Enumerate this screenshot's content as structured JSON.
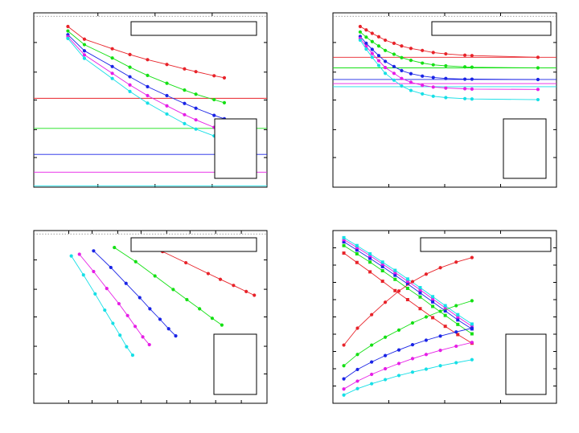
{
  "colors": {
    "red": "#e8232a",
    "green": "#14e014",
    "blue": "#1a24e6",
    "magenta": "#e61ee6",
    "cyan": "#16dfe6",
    "frame": "#000000",
    "reference": "#808080"
  },
  "chart_data": [
    {
      "type": "line",
      "title": "",
      "xlabel": "",
      "ylabel": "",
      "xlim": [
        0,
        41
      ],
      "ylim": [
        0,
        51
      ],
      "grid": false,
      "legend": "top-right",
      "legend_box": "bottom-right",
      "reference_line": 50,
      "series": [
        {
          "color": "red",
          "x": [
            6,
            8.9,
            13.8,
            16.9,
            20,
            23.4,
            26.5,
            28.5,
            31.7,
            33.5
          ],
          "y": [
            47,
            43.3,
            40.5,
            38.8,
            37.3,
            35.9,
            34.6,
            33.8,
            32.6,
            32.0
          ]
        },
        {
          "color": "green",
          "x": [
            6,
            8.9,
            13.8,
            16.9,
            20,
            23.4,
            26.5,
            28.5,
            31.7,
            33.5
          ],
          "y": [
            45.7,
            41.7,
            37.8,
            35.1,
            32.7,
            30.4,
            28.4,
            27.2,
            25.6,
            24.7
          ]
        },
        {
          "color": "blue",
          "x": [
            6,
            8.9,
            13.8,
            16.9,
            20,
            23.4,
            26.5,
            28.5,
            31.7,
            33.5
          ],
          "y": [
            44.6,
            39.9,
            35.3,
            32.3,
            29.4,
            26.8,
            24.5,
            23.1,
            21.0,
            20.0
          ]
        },
        {
          "color": "magenta",
          "x": [
            6,
            8.9,
            13.8,
            16.9,
            20,
            23.4,
            26.5,
            28.5,
            31.7,
            33.5
          ],
          "y": [
            44.0,
            38.7,
            33.3,
            29.9,
            26.8,
            23.8,
            21.2,
            19.7,
            17.5,
            16.5
          ]
        },
        {
          "color": "cyan",
          "x": [
            6,
            8.9,
            13.8,
            16.9,
            20,
            23.4,
            26.5,
            28.5,
            31.7,
            33.5
          ],
          "y": [
            43.5,
            37.7,
            31.8,
            28.0,
            24.6,
            21.4,
            18.6,
            17.0,
            15.0,
            14.0
          ]
        }
      ],
      "hlines": [
        {
          "color": "red",
          "y": 26.0
        },
        {
          "color": "green",
          "y": 17.2
        },
        {
          "color": "blue",
          "y": 9.6
        },
        {
          "color": "magenta",
          "y": 4.4
        },
        {
          "color": "cyan",
          "y": 0.4
        }
      ]
    },
    {
      "type": "line",
      "title": "",
      "xlabel": "",
      "ylabel": "",
      "xlim": [
        0,
        41
      ],
      "ylim": [
        0,
        51
      ],
      "grid": false,
      "legend": "top-right",
      "legend_box": "bottom-right",
      "reference_line": 50,
      "series": [
        {
          "color": "red",
          "x": [
            5,
            6.1,
            7.2,
            8.4,
            9.6,
            11.2,
            12.6,
            14.3,
            16.4,
            18.4,
            20.7,
            24.2,
            25.5,
            37.6
          ],
          "y": [
            47,
            46.0,
            45.0,
            44.0,
            43.0,
            42.1,
            41.3,
            40.6,
            40.0,
            39.4,
            39.0,
            38.6,
            38.5,
            38.0
          ]
        },
        {
          "color": "green",
          "x": [
            5,
            6.1,
            7.2,
            8.4,
            9.6,
            11.2,
            12.6,
            14.3,
            16.4,
            18.4,
            20.7,
            24.2,
            25.5,
            37.6
          ],
          "y": [
            45.4,
            43.9,
            42.6,
            41.3,
            40.0,
            38.9,
            37.9,
            37.1,
            36.3,
            35.8,
            35.5,
            35.2,
            35.1,
            34.9
          ]
        },
        {
          "color": "blue",
          "x": [
            5,
            6.1,
            7.2,
            8.4,
            9.6,
            11.2,
            12.6,
            14.3,
            16.4,
            18.4,
            20.7,
            24.2,
            25.5,
            37.6
          ],
          "y": [
            44.1,
            42.1,
            40.3,
            38.5,
            36.8,
            35.3,
            34.1,
            33.2,
            32.5,
            32.1,
            31.8,
            31.6,
            31.6,
            31.5
          ]
        },
        {
          "color": "magenta",
          "x": [
            5,
            6.1,
            7.2,
            8.4,
            9.6,
            11.2,
            12.6,
            14.3,
            16.4,
            18.4,
            20.7,
            24.2,
            25.5,
            37.6
          ],
          "y": [
            43.5,
            41.2,
            39.1,
            37.0,
            35.0,
            33.3,
            31.8,
            30.7,
            29.8,
            29.3,
            29.0,
            28.8,
            28.7,
            28.6
          ]
        },
        {
          "color": "cyan",
          "x": [
            5,
            6.1,
            7.2,
            8.4,
            9.6,
            11.2,
            12.6,
            14.3,
            16.4,
            18.4,
            20.7,
            24.2,
            25.5,
            37.6
          ],
          "y": [
            43.0,
            40.4,
            38.0,
            35.6,
            33.3,
            31.3,
            29.6,
            28.3,
            27.3,
            26.6,
            26.2,
            25.9,
            25.8,
            25.6
          ]
        }
      ],
      "hlines": [
        {
          "color": "red",
          "y": 38.0
        },
        {
          "color": "green",
          "y": 34.9
        },
        {
          "color": "blue",
          "y": 31.5
        },
        {
          "color": "magenta",
          "y": 30.3
        },
        {
          "color": "cyan",
          "y": 29.4
        }
      ]
    },
    {
      "type": "line",
      "title": "",
      "xlabel": "",
      "ylabel": "",
      "xlim": [
        0,
        46
      ],
      "ylim": [
        0,
        51
      ],
      "grid": false,
      "legend": "top-right",
      "legend_box": "bottom-right",
      "reference_line": 50,
      "series": [
        {
          "color": "red",
          "x": [
            21,
            25.4,
            30,
            34.4,
            36.8,
            39.4,
            41.9,
            43.5
          ],
          "y": [
            48,
            44.8,
            41.5,
            38.3,
            36.6,
            34.8,
            33.0,
            31.9
          ]
        },
        {
          "color": "green",
          "x": [
            15.9,
            20.1,
            23.9,
            27.5,
            30.2,
            32.7,
            35.2,
            37.1
          ],
          "y": [
            46,
            41.8,
            37.6,
            33.6,
            30.6,
            27.9,
            25.1,
            23.1
          ]
        },
        {
          "color": "blue",
          "x": [
            11.8,
            15.2,
            18.2,
            20.9,
            22.9,
            24.9,
            26.6,
            28.0
          ],
          "y": [
            45,
            40.1,
            35.4,
            31.2,
            27.9,
            24.8,
            22.0,
            19.9
          ]
        },
        {
          "color": "magenta",
          "x": [
            9.0,
            11.8,
            14.4,
            16.8,
            18.5,
            20.0,
            21.5,
            22.8
          ],
          "y": [
            44,
            38.9,
            33.9,
            29.4,
            25.9,
            22.7,
            19.6,
            17.3
          ]
        },
        {
          "color": "cyan",
          "x": [
            7.4,
            9.8,
            12.1,
            14.0,
            15.6,
            17.0,
            18.3,
            19.5
          ],
          "y": [
            43.5,
            37.9,
            32.3,
            27.5,
            23.6,
            20.1,
            16.7,
            14.2
          ]
        }
      ]
    },
    {
      "type": "line",
      "title": "",
      "xlabel": "",
      "ylabel": "",
      "xlim": [
        0,
        41
      ],
      "ylim": [
        0,
        46
      ],
      "grid": false,
      "legend": "top-right",
      "legend_box": "bottom-right",
      "series": [
        {
          "color": "red",
          "marker": "square",
          "x": [
            2,
            4.4,
            6.8,
            9.1,
            11.4,
            13.7,
            16.0,
            18.3,
            20.6,
            22.9,
            25.5
          ],
          "y": [
            40,
            37.5,
            35.0,
            32.5,
            30.0,
            27.6,
            25.2,
            22.8,
            20.5,
            18.3,
            16.0
          ]
        },
        {
          "color": "green",
          "marker": "square",
          "x": [
            2,
            4.4,
            6.8,
            9.1,
            11.4,
            13.7,
            16.0,
            18.3,
            20.6,
            22.9,
            25.5
          ],
          "y": [
            42,
            39.8,
            37.6,
            35.3,
            33.0,
            30.6,
            28.3,
            25.8,
            23.4,
            21.0,
            18.5
          ]
        },
        {
          "color": "blue",
          "marker": "square",
          "x": [
            2,
            4.4,
            6.8,
            9.1,
            11.4,
            13.7,
            16.0,
            18.3,
            20.6,
            22.9,
            25.5
          ],
          "y": [
            43,
            40.8,
            38.6,
            36.4,
            34.1,
            31.8,
            29.4,
            27.0,
            24.6,
            22.2,
            19.8
          ]
        },
        {
          "color": "magenta",
          "marker": "square",
          "x": [
            2,
            4.4,
            6.8,
            9.1,
            11.4,
            13.7,
            16.0,
            18.3,
            20.6,
            22.9,
            25.5
          ],
          "y": [
            43.6,
            41.5,
            39.3,
            37.1,
            34.8,
            32.5,
            30.2,
            27.8,
            25.4,
            23.0,
            20.5
          ]
        },
        {
          "color": "cyan",
          "marker": "square",
          "x": [
            2,
            4.4,
            6.8,
            9.1,
            11.4,
            13.7,
            16.0,
            18.3,
            20.6,
            22.9,
            25.5
          ],
          "y": [
            44.1,
            42.0,
            39.8,
            37.6,
            35.4,
            33.1,
            30.8,
            28.4,
            26.0,
            23.6,
            21.1
          ]
        },
        {
          "color": "red",
          "marker": "circle",
          "x": [
            2,
            4.5,
            7.1,
            9.6,
            12.1,
            14.6,
            17.1,
            19.7,
            22.6,
            25.5
          ],
          "y": [
            15.5,
            20.0,
            23.6,
            26.9,
            29.9,
            32.4,
            34.4,
            36.1,
            37.6,
            38.8
          ]
        },
        {
          "color": "green",
          "marker": "circle",
          "x": [
            2,
            4.5,
            7.1,
            9.6,
            12.1,
            14.6,
            17.1,
            19.7,
            22.6,
            25.5
          ],
          "y": [
            10.0,
            13.0,
            15.5,
            17.6,
            19.5,
            21.4,
            23.0,
            24.5,
            26.0,
            27.3
          ]
        },
        {
          "color": "blue",
          "marker": "circle",
          "x": [
            2,
            4.5,
            7.1,
            9.6,
            12.1,
            14.6,
            17.1,
            19.7,
            22.6,
            25.5
          ],
          "y": [
            6.5,
            9.0,
            11.0,
            12.7,
            14.2,
            15.6,
            16.8,
            17.9,
            19.0,
            20.0
          ]
        },
        {
          "color": "magenta",
          "marker": "circle",
          "x": [
            2,
            4.5,
            7.1,
            9.6,
            12.1,
            14.6,
            17.1,
            19.7,
            22.6,
            25.5
          ],
          "y": [
            3.8,
            5.9,
            7.7,
            9.2,
            10.6,
            11.9,
            13.0,
            14.1,
            15.2,
            16.2
          ]
        },
        {
          "color": "cyan",
          "marker": "circle",
          "x": [
            2,
            4.5,
            7.1,
            9.6,
            12.1,
            14.6,
            17.1,
            19.7,
            22.6,
            25.5
          ],
          "y": [
            2.2,
            3.9,
            5.2,
            6.3,
            7.4,
            8.3,
            9.1,
            10.0,
            10.8,
            11.6
          ]
        }
      ]
    }
  ]
}
